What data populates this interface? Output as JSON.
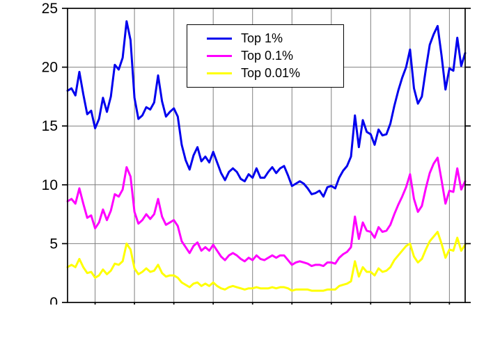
{
  "chart_data": {
    "type": "line",
    "title": "",
    "xlabel": "",
    "ylabel": "",
    "xlim": [
      1913,
      2014
    ],
    "ylim": [
      0,
      25
    ],
    "yticks": [
      0,
      5,
      10,
      15,
      20,
      25
    ],
    "x_gridlines": [
      1920,
      1930,
      1940,
      1950,
      1960,
      1970,
      1980,
      1990,
      2000,
      2010
    ],
    "grid": true,
    "grid_color": "#7f7f7f",
    "frame_color": "#000000",
    "legend_position": "top-center",
    "x": [
      1913,
      1914,
      1915,
      1916,
      1917,
      1918,
      1919,
      1920,
      1921,
      1922,
      1923,
      1924,
      1925,
      1926,
      1927,
      1928,
      1929,
      1930,
      1931,
      1932,
      1933,
      1934,
      1935,
      1936,
      1937,
      1938,
      1939,
      1940,
      1941,
      1942,
      1943,
      1944,
      1945,
      1946,
      1947,
      1948,
      1949,
      1950,
      1951,
      1952,
      1953,
      1954,
      1955,
      1956,
      1957,
      1958,
      1959,
      1960,
      1961,
      1962,
      1963,
      1964,
      1965,
      1966,
      1967,
      1968,
      1969,
      1970,
      1971,
      1972,
      1973,
      1974,
      1975,
      1976,
      1977,
      1978,
      1979,
      1980,
      1981,
      1982,
      1983,
      1984,
      1985,
      1986,
      1987,
      1988,
      1989,
      1990,
      1991,
      1992,
      1993,
      1994,
      1995,
      1996,
      1997,
      1998,
      1999,
      2000,
      2001,
      2002,
      2003,
      2004,
      2005,
      2006,
      2007,
      2008,
      2009,
      2010,
      2011,
      2012,
      2013,
      2014
    ],
    "series": [
      {
        "name": "Top 1%",
        "color": "#0000ee",
        "values": [
          18.0,
          18.2,
          17.6,
          19.6,
          17.7,
          16.0,
          16.3,
          14.8,
          15.6,
          17.4,
          16.2,
          17.5,
          20.2,
          19.8,
          20.8,
          23.9,
          22.3,
          17.4,
          15.6,
          15.9,
          16.6,
          16.4,
          17.0,
          19.3,
          17.1,
          15.8,
          16.2,
          16.5,
          15.8,
          13.4,
          12.1,
          11.3,
          12.5,
          13.2,
          12.0,
          12.4,
          11.9,
          12.8,
          11.9,
          11.0,
          10.4,
          11.1,
          11.4,
          11.1,
          10.5,
          10.3,
          10.9,
          10.6,
          11.4,
          10.6,
          10.6,
          11.1,
          11.5,
          11.0,
          11.4,
          11.6,
          10.8,
          9.9,
          10.1,
          10.3,
          10.1,
          9.7,
          9.2,
          9.3,
          9.5,
          9.0,
          9.8,
          9.9,
          9.7,
          10.6,
          11.2,
          11.6,
          12.4,
          15.9,
          13.2,
          15.5,
          14.5,
          14.3,
          13.4,
          14.7,
          14.2,
          14.3,
          15.2,
          16.7,
          18.0,
          19.1,
          20.0,
          21.5,
          18.2,
          16.9,
          17.5,
          19.8,
          21.9,
          22.8,
          23.5,
          21.0,
          18.1,
          19.9,
          19.7,
          22.5,
          20.1,
          21.2
        ]
      },
      {
        "name": "Top 0.1%",
        "color": "#ff00ff",
        "values": [
          8.6,
          8.8,
          8.4,
          9.7,
          8.4,
          7.2,
          7.4,
          6.3,
          6.8,
          7.9,
          7.0,
          7.8,
          9.2,
          9.0,
          9.6,
          11.5,
          10.7,
          7.7,
          6.7,
          7.0,
          7.5,
          7.1,
          7.5,
          8.8,
          7.3,
          6.6,
          6.8,
          7.0,
          6.5,
          5.2,
          4.7,
          4.2,
          4.8,
          5.1,
          4.4,
          4.7,
          4.4,
          4.9,
          4.4,
          3.9,
          3.6,
          4.0,
          4.2,
          4.0,
          3.7,
          3.5,
          3.8,
          3.6,
          4.0,
          3.7,
          3.6,
          3.8,
          4.0,
          3.8,
          4.0,
          4.0,
          3.6,
          3.2,
          3.4,
          3.5,
          3.4,
          3.3,
          3.1,
          3.2,
          3.2,
          3.1,
          3.4,
          3.4,
          3.3,
          3.8,
          4.1,
          4.3,
          4.7,
          7.3,
          5.4,
          6.8,
          6.1,
          6.0,
          5.5,
          6.4,
          6.0,
          6.1,
          6.6,
          7.5,
          8.3,
          9.0,
          9.8,
          10.9,
          8.8,
          7.7,
          8.2,
          9.7,
          11.0,
          11.8,
          12.3,
          10.4,
          8.4,
          9.5,
          9.4,
          11.4,
          9.6,
          10.3
        ]
      },
      {
        "name": "Top 0.01%",
        "color": "#ffff00",
        "values": [
          3.0,
          3.2,
          3.0,
          3.7,
          3.0,
          2.5,
          2.6,
          2.1,
          2.3,
          2.8,
          2.4,
          2.7,
          3.3,
          3.2,
          3.5,
          5.0,
          4.5,
          2.9,
          2.4,
          2.6,
          2.9,
          2.6,
          2.7,
          3.2,
          2.5,
          2.2,
          2.3,
          2.3,
          2.1,
          1.7,
          1.5,
          1.3,
          1.6,
          1.7,
          1.4,
          1.6,
          1.4,
          1.7,
          1.4,
          1.2,
          1.1,
          1.3,
          1.4,
          1.3,
          1.2,
          1.1,
          1.2,
          1.2,
          1.3,
          1.2,
          1.2,
          1.2,
          1.3,
          1.2,
          1.3,
          1.3,
          1.2,
          1.0,
          1.1,
          1.1,
          1.1,
          1.1,
          1.0,
          1.0,
          1.0,
          1.0,
          1.1,
          1.1,
          1.1,
          1.4,
          1.5,
          1.6,
          1.8,
          3.5,
          2.2,
          3.0,
          2.6,
          2.6,
          2.3,
          2.9,
          2.6,
          2.7,
          3.0,
          3.6,
          4.0,
          4.4,
          4.8,
          5.0,
          3.9,
          3.4,
          3.7,
          4.5,
          5.2,
          5.6,
          6.0,
          5.0,
          3.8,
          4.5,
          4.4,
          5.5,
          4.4,
          4.9
        ]
      }
    ]
  }
}
